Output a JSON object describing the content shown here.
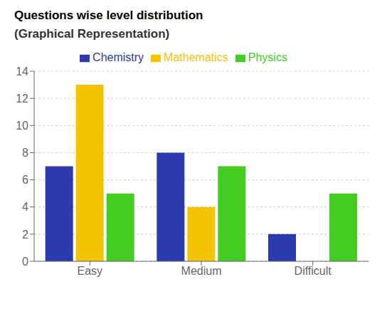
{
  "chart_data": {
    "type": "bar",
    "title": "Questions wise level distribution",
    "subtitle": "(Graphical Representation)",
    "categories": [
      "Easy",
      "Medium",
      "Difficult"
    ],
    "series": [
      {
        "name": "Chemistry",
        "color": "#2d3aad",
        "values": [
          7,
          8,
          2
        ]
      },
      {
        "name": "Mathematics",
        "color": "#f5c400",
        "values": [
          13,
          4,
          0
        ]
      },
      {
        "name": "Physics",
        "color": "#44cc22",
        "values": [
          5,
          7,
          5
        ]
      }
    ],
    "ylim": [
      0,
      14
    ],
    "yticks": [
      0,
      2,
      4,
      6,
      8,
      10,
      12,
      14
    ],
    "grid": true,
    "legend": "top"
  }
}
